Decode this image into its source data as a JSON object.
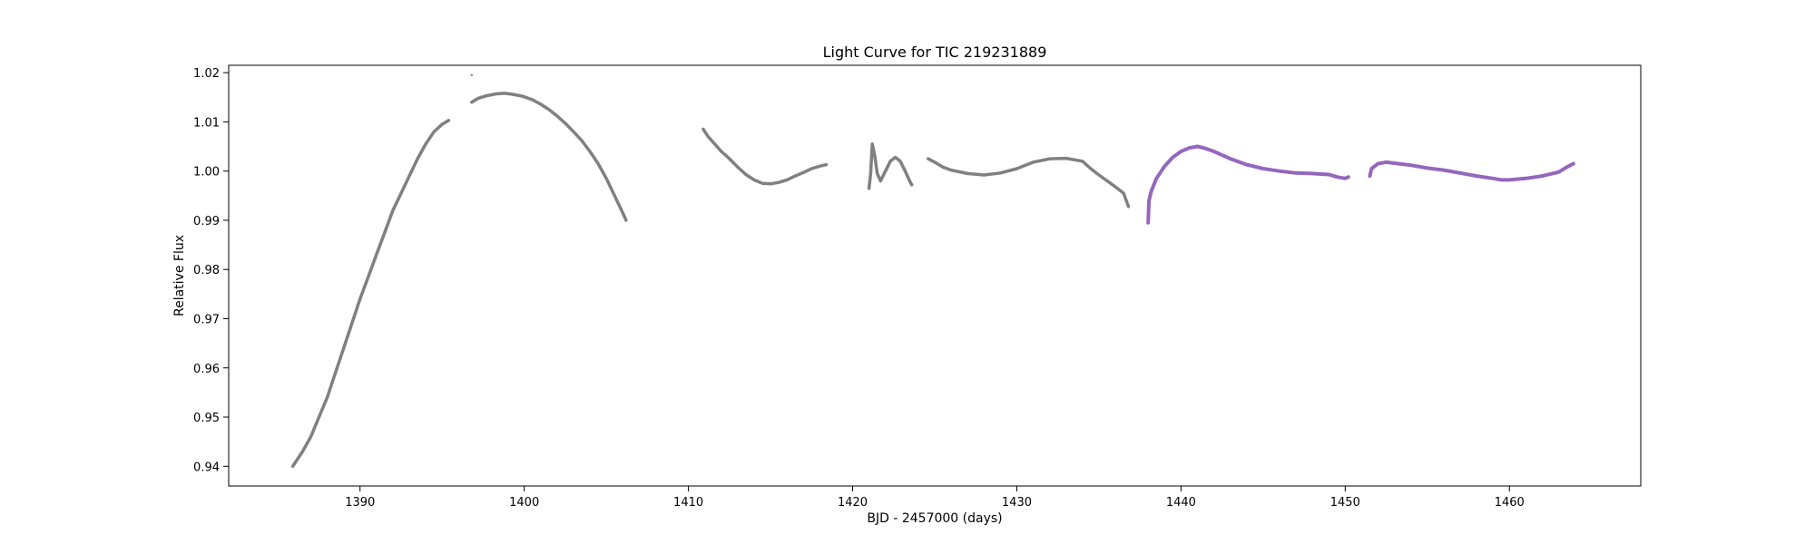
{
  "chart_data": {
    "type": "scatter",
    "title": "Light Curve for TIC 219231889",
    "xlabel": "BJD - 2457000 (days)",
    "ylabel": "Relative Flux",
    "xlim": [
      1382,
      1468
    ],
    "ylim": [
      0.936,
      1.0215
    ],
    "xticks": [
      1390,
      1400,
      1410,
      1420,
      1430,
      1440,
      1450,
      1460
    ],
    "yticks": [
      0.94,
      0.95,
      0.96,
      0.97,
      0.98,
      0.99,
      1.0,
      1.01,
      1.02
    ],
    "ytick_labels": [
      "0.94",
      "0.95",
      "0.96",
      "0.97",
      "0.98",
      "0.99",
      "1.00",
      "1.01",
      "1.02"
    ],
    "grid": false,
    "colors": {
      "sector_a": "#808080",
      "sector_b": "#9467bd"
    },
    "series": [
      {
        "color": "#808080",
        "segments": [
          [
            [
              1385.9,
              0.94
            ],
            [
              1386.5,
              0.943
            ],
            [
              1387.0,
              0.946
            ],
            [
              1387.5,
              0.95
            ],
            [
              1388.0,
              0.954
            ],
            [
              1388.5,
              0.959
            ],
            [
              1389.0,
              0.964
            ],
            [
              1389.5,
              0.969
            ],
            [
              1390.0,
              0.974
            ],
            [
              1390.5,
              0.9785
            ],
            [
              1391.0,
              0.983
            ],
            [
              1391.5,
              0.9875
            ],
            [
              1392.0,
              0.992
            ],
            [
              1392.5,
              0.9955
            ],
            [
              1393.0,
              0.999
            ],
            [
              1393.5,
              1.0025
            ],
            [
              1394.0,
              1.0055
            ],
            [
              1394.5,
              1.008
            ],
            [
              1395.0,
              1.0095
            ],
            [
              1395.4,
              1.0103
            ]
          ],
          [
            [
              1396.8,
              1.0195
            ]
          ],
          [
            [
              1396.8,
              1.014
            ],
            [
              1397.2,
              1.0148
            ],
            [
              1397.7,
              1.0153
            ],
            [
              1398.3,
              1.0157
            ],
            [
              1398.8,
              1.0158
            ],
            [
              1399.3,
              1.0156
            ],
            [
              1399.9,
              1.0152
            ],
            [
              1400.5,
              1.0145
            ],
            [
              1401.0,
              1.0136
            ],
            [
              1401.5,
              1.0125
            ],
            [
              1402.0,
              1.0112
            ],
            [
              1402.5,
              1.0097
            ],
            [
              1403.0,
              1.008
            ],
            [
              1403.5,
              1.0062
            ],
            [
              1404.0,
              1.004
            ],
            [
              1404.5,
              1.0015
            ],
            [
              1405.0,
              0.9985
            ],
            [
              1405.5,
              0.995
            ],
            [
              1406.0,
              0.9915
            ],
            [
              1406.2,
              0.99
            ]
          ],
          [
            [
              1410.9,
              1.0085
            ],
            [
              1411.2,
              1.007
            ],
            [
              1411.6,
              1.0055
            ],
            [
              1412.0,
              1.004
            ],
            [
              1412.5,
              1.0025
            ],
            [
              1413.0,
              1.0008
            ],
            [
              1413.5,
              0.9993
            ],
            [
              1414.0,
              0.9982
            ],
            [
              1414.5,
              0.9975
            ],
            [
              1415.0,
              0.9974
            ],
            [
              1415.5,
              0.9977
            ],
            [
              1416.0,
              0.9982
            ],
            [
              1416.5,
              0.999
            ],
            [
              1417.0,
              0.9997
            ],
            [
              1417.5,
              1.0005
            ],
            [
              1418.0,
              1.001
            ],
            [
              1418.4,
              1.0013
            ]
          ],
          [
            [
              1421.0,
              0.9965
            ],
            [
              1421.1,
              0.9995
            ],
            [
              1421.2,
              1.0055
            ],
            [
              1421.35,
              1.003
            ],
            [
              1421.5,
              0.9995
            ],
            [
              1421.7,
              0.998
            ],
            [
              1422.0,
              1.0
            ],
            [
              1422.3,
              1.002
            ],
            [
              1422.6,
              1.0028
            ],
            [
              1422.9,
              1.002
            ],
            [
              1423.2,
              1.0
            ],
            [
              1423.5,
              0.9978
            ],
            [
              1423.6,
              0.9972
            ]
          ],
          [
            [
              1424.6,
              1.0025
            ],
            [
              1425.0,
              1.0018
            ],
            [
              1425.5,
              1.0008
            ],
            [
              1426.0,
              1.0002
            ],
            [
              1427.0,
              0.9995
            ],
            [
              1428.0,
              0.9992
            ],
            [
              1429.0,
              0.9996
            ],
            [
              1430.0,
              1.0005
            ],
            [
              1431.0,
              1.0018
            ],
            [
              1432.0,
              1.0025
            ],
            [
              1433.0,
              1.0026
            ],
            [
              1434.0,
              1.002
            ],
            [
              1434.5,
              1.0005
            ],
            [
              1435.0,
              0.9992
            ],
            [
              1435.5,
              0.998
            ],
            [
              1436.0,
              0.9968
            ],
            [
              1436.5,
              0.9955
            ],
            [
              1436.8,
              0.9928
            ]
          ]
        ]
      },
      {
        "color": "#9467bd",
        "segments": [
          [
            [
              1438.0,
              0.9895
            ],
            [
              1438.05,
              0.994
            ],
            [
              1438.2,
              0.996
            ],
            [
              1438.5,
              0.9985
            ],
            [
              1439.0,
              1.001
            ],
            [
              1439.5,
              1.0028
            ],
            [
              1440.0,
              1.004
            ],
            [
              1440.5,
              1.0047
            ],
            [
              1441.0,
              1.005
            ],
            [
              1441.5,
              1.0046
            ],
            [
              1442.0,
              1.004
            ],
            [
              1443.0,
              1.0025
            ],
            [
              1444.0,
              1.0013
            ],
            [
              1445.0,
              1.0005
            ],
            [
              1446.0,
              1.0
            ],
            [
              1447.0,
              0.9996
            ],
            [
              1448.0,
              0.9995
            ],
            [
              1449.0,
              0.9993
            ],
            [
              1449.5,
              0.9988
            ],
            [
              1450.0,
              0.9985
            ],
            [
              1450.2,
              0.9988
            ]
          ],
          [
            [
              1451.5,
              0.999
            ],
            [
              1451.6,
              1.0005
            ],
            [
              1452.0,
              1.0015
            ],
            [
              1452.5,
              1.0018
            ],
            [
              1453.0,
              1.0016
            ],
            [
              1454.0,
              1.0012
            ],
            [
              1455.0,
              1.0006
            ],
            [
              1456.0,
              1.0002
            ],
            [
              1457.0,
              0.9996
            ],
            [
              1458.0,
              0.999
            ],
            [
              1459.0,
              0.9985
            ],
            [
              1459.5,
              0.9982
            ],
            [
              1460.0,
              0.9982
            ],
            [
              1461.0,
              0.9985
            ],
            [
              1462.0,
              0.999
            ],
            [
              1463.0,
              0.9998
            ],
            [
              1463.5,
              1.0008
            ],
            [
              1463.9,
              1.0015
            ]
          ]
        ]
      }
    ]
  }
}
